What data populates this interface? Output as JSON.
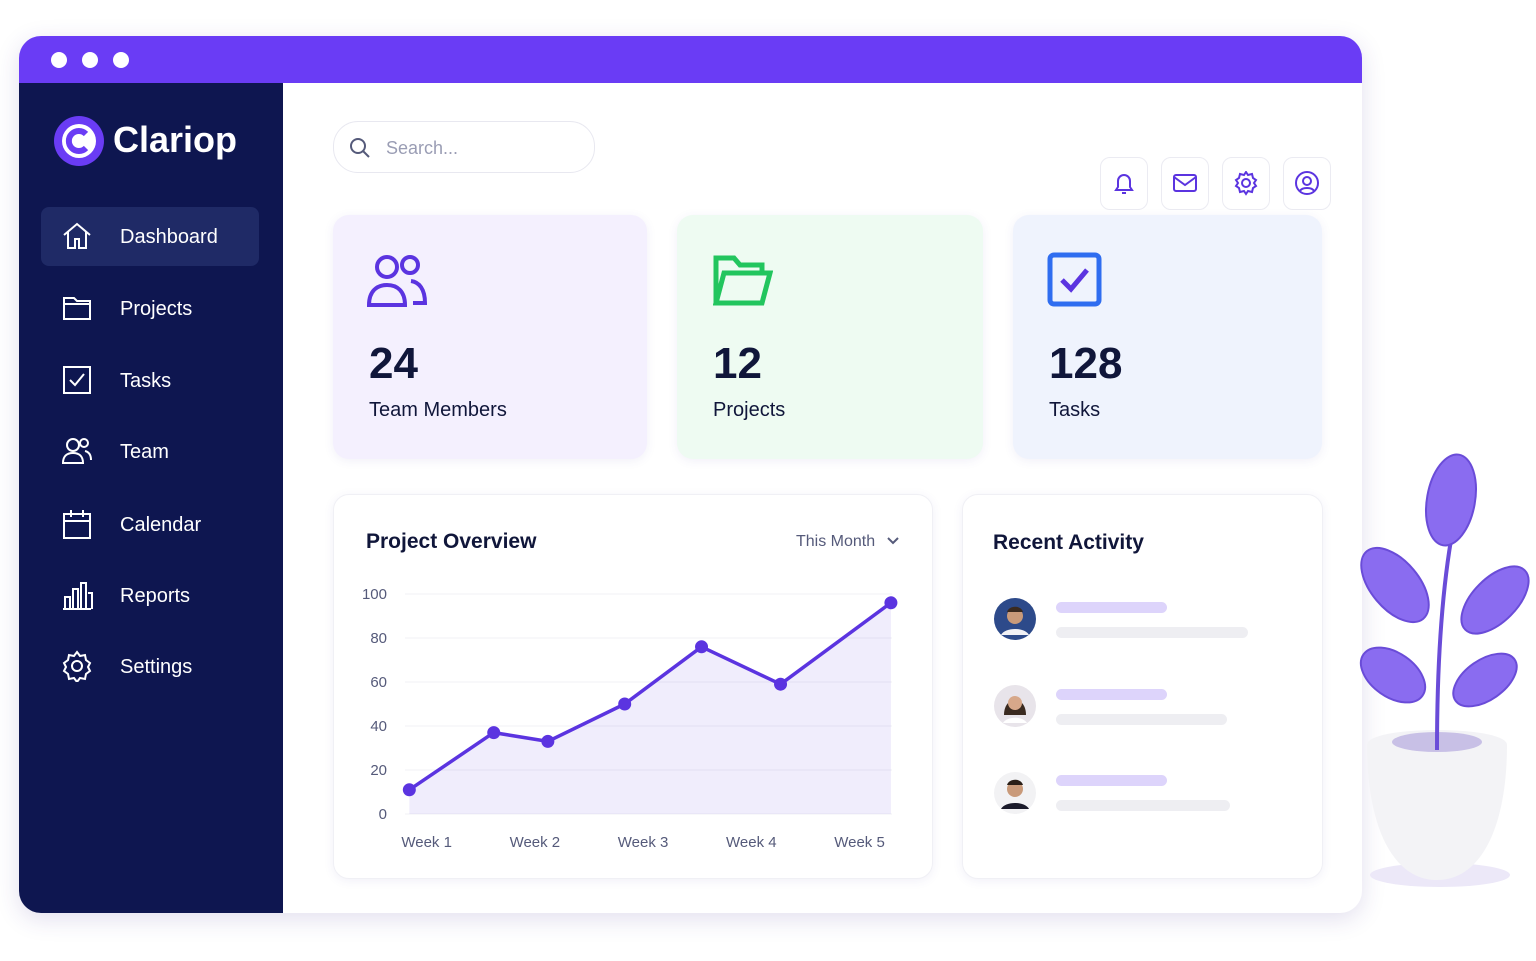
{
  "brand": "Clariop",
  "search_placeholder": "Search...",
  "nav": [
    "Dashboard",
    "Projects",
    "Tasks",
    "Team",
    "Calendar",
    "Reports",
    "Settings"
  ],
  "stats": [
    {
      "value": 24,
      "label": "Team Members"
    },
    {
      "value": 12,
      "label": "Projects"
    },
    {
      "value": 128,
      "label": "Tasks"
    }
  ],
  "recent_activity": {
    "title": "Recent Activity"
  },
  "chart_data": {
    "type": "line",
    "title": "Project Overview",
    "period": "This Month",
    "x": [
      0.84,
      1.62,
      2.12,
      2.83,
      3.54,
      4.27,
      5.29
    ],
    "values": [
      11,
      37,
      33,
      50,
      76,
      59,
      96
    ],
    "color": "#5b34e0",
    "area": true,
    "xlim": [
      0.8,
      5.3
    ],
    "xticks": [
      {
        "value": 1,
        "label": "Week 1"
      },
      {
        "value": 2,
        "label": "Week 2"
      },
      {
        "value": 3,
        "label": "Week 3"
      },
      {
        "value": 4,
        "label": "Week 4"
      },
      {
        "value": 5,
        "label": "Week 5"
      }
    ],
    "ylim": [
      0,
      100
    ],
    "yticks": [
      0,
      20,
      40,
      60,
      80,
      100
    ],
    "grid": true
  }
}
